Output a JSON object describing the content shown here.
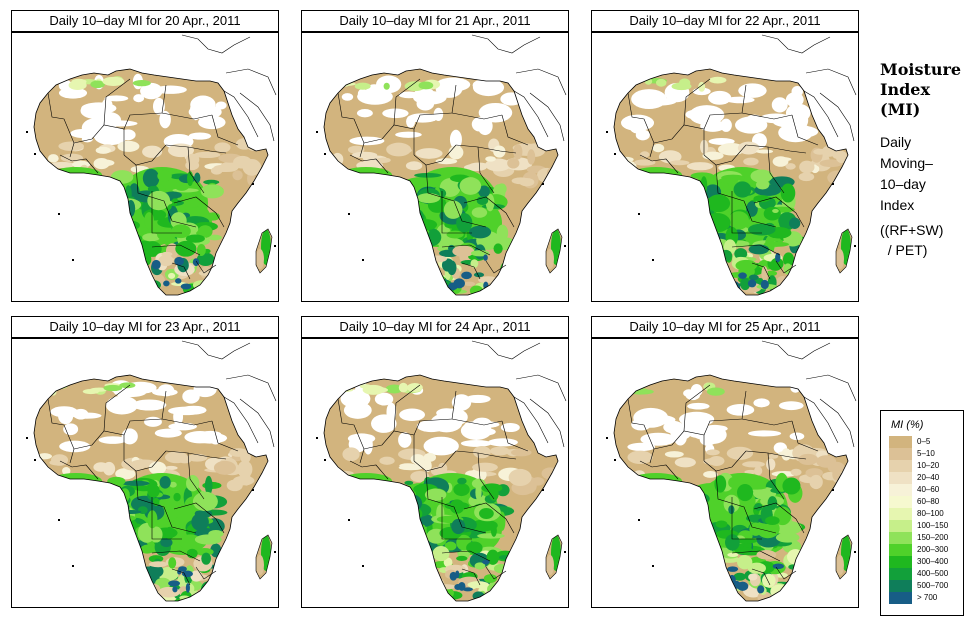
{
  "panels": [
    {
      "title": "Daily 10–day MI for  20 Apr., 2011",
      "variant": 0
    },
    {
      "title": "Daily 10–day MI for  21 Apr., 2011",
      "variant": 1
    },
    {
      "title": "Daily 10–day MI for  22 Apr., 2011",
      "variant": 2
    },
    {
      "title": "Daily 10–day MI for  23 Apr., 2011",
      "variant": 3
    },
    {
      "title": "Daily 10–day MI for  24 Apr., 2011",
      "variant": 4
    },
    {
      "title": "Daily 10–day MI for  25 Apr., 2011",
      "variant": 5
    }
  ],
  "side": {
    "title_lines": [
      "Moisture",
      "Index",
      "(MI)"
    ],
    "desc_lines": [
      "Daily",
      "Moving–",
      "10–day",
      "Index"
    ],
    "formula_lines": [
      "((RF+SW)",
      "  / PET)"
    ]
  },
  "legend": {
    "title": "MI (%)",
    "classes": [
      {
        "label": "0–5",
        "color": "#d2b47e"
      },
      {
        "label": "5–10",
        "color": "#dcc196"
      },
      {
        "label": "10–20",
        "color": "#e6d2ad"
      },
      {
        "label": "20–40",
        "color": "#efe1c4"
      },
      {
        "label": "40–60",
        "color": "#f7f2d8"
      },
      {
        "label": "60–80",
        "color": "#f6f9cf"
      },
      {
        "label": "80–100",
        "color": "#e6f6b0"
      },
      {
        "label": "100–150",
        "color": "#c6ef8a"
      },
      {
        "label": "150–200",
        "color": "#8fe25a"
      },
      {
        "label": "200–300",
        "color": "#4fd12a"
      },
      {
        "label": "300–400",
        "color": "#1fb81f"
      },
      {
        "label": "400–500",
        "color": "#12a03a"
      },
      {
        "label": "500–700",
        "color": "#0f7e5a"
      },
      {
        "label": "> 700",
        "color": "#175d86"
      }
    ]
  }
}
